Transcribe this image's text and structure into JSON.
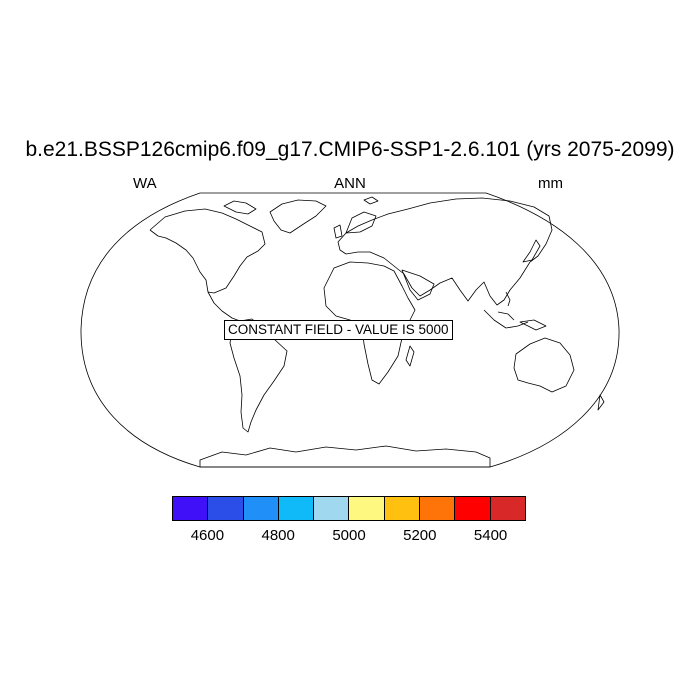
{
  "title": "b.e21.BSSP126cmip6.f09_g17.CMIP6-SSP1-2.6.101 (yrs 2075-2099)",
  "variable": "WA",
  "season": "ANN",
  "units": "mm",
  "notice": "CONSTANT FIELD - VALUE IS 5000",
  "colorbar": {
    "colors": [
      "#4010F8",
      "#2B4DE8",
      "#2090F8",
      "#10BAF8",
      "#A0D8F0",
      "#FFF880",
      "#FFC010",
      "#FF7408",
      "#FF0000",
      "#D82828"
    ],
    "labels": [
      "4600",
      "4800",
      "5000",
      "5200",
      "5400"
    ]
  }
}
